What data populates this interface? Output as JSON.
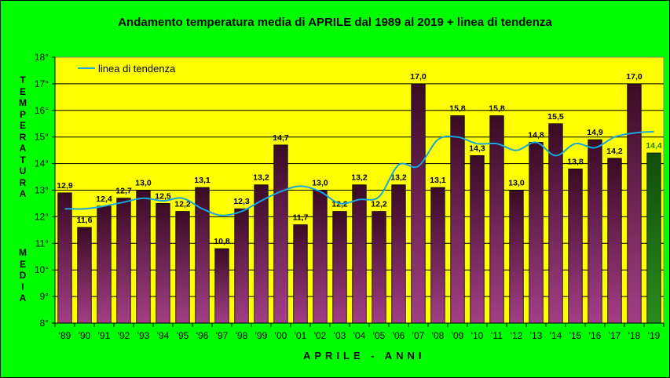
{
  "chart_data": {
    "type": "bar",
    "title": "Andamento temperatura media di APRILE dal 1989 al 2019 + linea di tendenza",
    "ylabel_top": "TEMPERATURA",
    "ylabel_bottom": "MEDIA",
    "xlabel": "APRILE - ANNI",
    "ylim": [
      8,
      18
    ],
    "yticks": [
      "8°",
      "9°",
      "10°",
      "11°",
      "12°",
      "13°",
      "14°",
      "15°",
      "16°",
      "17°",
      "18°"
    ],
    "categories": [
      "'89",
      "'90",
      "'91",
      "'92",
      "'93",
      "'94",
      "'95",
      "'96",
      "'97",
      "'98",
      "'99",
      "'00",
      "'01",
      "'02",
      "'03",
      "'04",
      "'05",
      "'06",
      "'07",
      "'08",
      "'09",
      "'10",
      "'11",
      "'12",
      "'13",
      "'14",
      "'15",
      "'16",
      "'17",
      "'18",
      "'19"
    ],
    "series": [
      {
        "name": "temperatura media",
        "values": [
          12.9,
          11.6,
          12.4,
          12.7,
          13.0,
          12.5,
          12.2,
          13.1,
          10.8,
          12.3,
          13.2,
          14.7,
          11.7,
          13.0,
          12.2,
          13.2,
          12.2,
          13.2,
          17.0,
          13.1,
          15.8,
          14.3,
          15.8,
          13.0,
          14.8,
          15.5,
          13.8,
          14.9,
          14.2,
          17.0,
          14.4
        ],
        "labels": [
          "12,9",
          "11,6",
          "12,4",
          "12,7",
          "13,0",
          "12,5",
          "12,2",
          "13,1",
          "10,8",
          "12,3",
          "13,2",
          "14,7",
          "11,7",
          "13,0",
          "12,2",
          "13,2",
          "12,2",
          "13,2",
          "17,0",
          "13,1",
          "15,8",
          "14,3",
          "15,8",
          "13,0",
          "14,8",
          "15,5",
          "13,8",
          "14,9",
          "14,2",
          "17,0",
          "14,4"
        ]
      },
      {
        "name": "linea di tendenza",
        "values": [
          12.3,
          12.3,
          12.4,
          12.55,
          12.7,
          12.6,
          12.7,
          12.3,
          12.05,
          12.2,
          12.6,
          12.95,
          13.15,
          12.95,
          12.5,
          12.65,
          12.75,
          13.95,
          13.9,
          14.9,
          15.0,
          14.75,
          14.75,
          14.5,
          14.8,
          14.3,
          14.75,
          14.6,
          15.0,
          15.15,
          15.2
        ]
      }
    ],
    "highlight_index": 30,
    "legend": "top-left",
    "colors": {
      "background": "#00ff00",
      "plot": "#ffff00",
      "bar_top": "#3a0b25",
      "bar_bottom": "#a33e87",
      "highlight_bar": "#1a6b12",
      "highlight_label": "#1d7e14",
      "trend": "#1aa6e0"
    }
  }
}
